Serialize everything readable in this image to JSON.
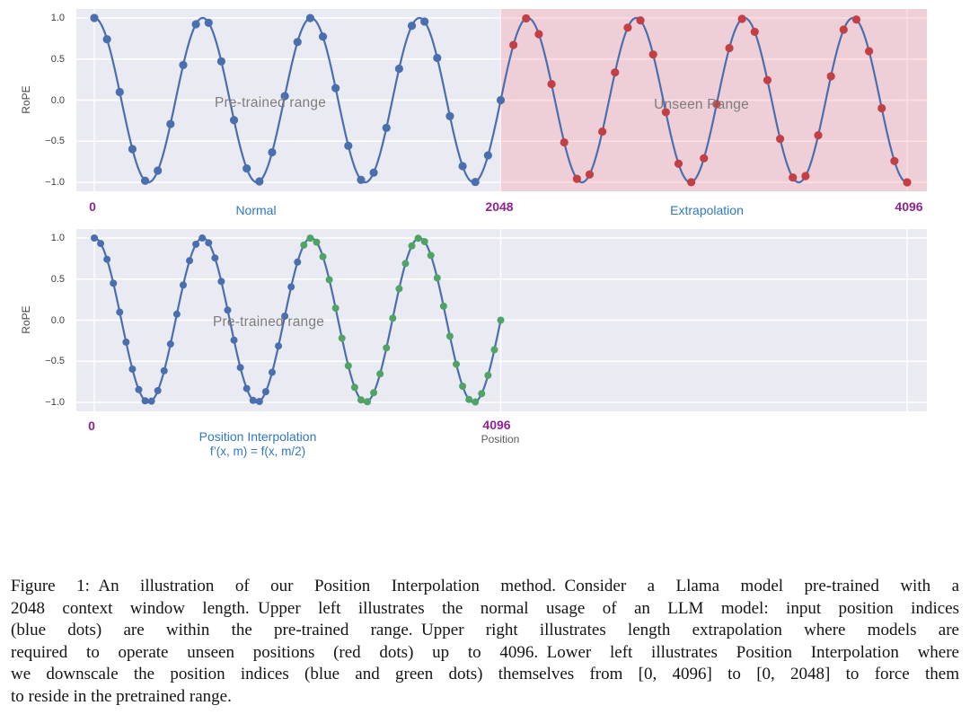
{
  "figure": {
    "caption_lines": [
      "Figure 1: An illustration of our Position Interpolation method. Consider a Llama model pre-trained with a",
      "2048 context window length. Upper left illustrates the normal usage of an LLM model: input position indices",
      "(blue dots) are within the pre-trained range. Upper right illustrates length extrapolation where models are",
      "required to operate unseen positions (red dots) up to 4096. Lower left illustrates Position Interpolation where",
      "we downscale the position indices (blue and green dots) themselves from [0, 4096] to [0, 2048] to force them",
      "to reside in the pretrained range."
    ]
  },
  "colors": {
    "plot_background": "#eaeaf2",
    "gridline": "#ffffff",
    "line_blue": "#4a6fae",
    "dot_blue": "#4a6fae",
    "dot_red": "#c24045",
    "dot_green": "#4fa465",
    "unseen_region_fill": "rgba(255,135,145,0.27)",
    "tick_purple": "#8e2490",
    "label_blue": "#3178be",
    "annotation_gray": "#7d7d7d"
  },
  "chart_data": [
    {
      "id": "rope-normal-vs-extrapolation",
      "type": "line",
      "ylabel": "RoPE",
      "ylim": [
        -1.11,
        1.11
      ],
      "yticks": [
        {
          "value": 1.0,
          "label": "1.0"
        },
        {
          "value": 0.5,
          "label": "0.5"
        },
        {
          "value": 0.0,
          "label": "0.0"
        },
        {
          "value": -0.5,
          "label": "−0.5"
        },
        {
          "value": -1.0,
          "label": "−1.0"
        }
      ],
      "x_axis_range": [
        0,
        4096
      ],
      "x_data_max": 4096,
      "wave_cycles": 7.5,
      "dot_step": 64,
      "color_boundary": 2048,
      "dot_color_in": "#4a6fae",
      "dot_color_out": "#c24045",
      "dot_radius": 4.6,
      "line_color": "#4a6fae",
      "shaded_region": {
        "start": 2048,
        "label": "Unseen Range"
      },
      "xticks": [
        {
          "value": 0,
          "label": "0"
        },
        {
          "value": 2048,
          "label": "2048"
        },
        {
          "value": 4096,
          "label": "4096"
        }
      ],
      "normal_label": "Normal",
      "extrapolation_label": "Extrapolation",
      "annotations": [
        {
          "text": "Pre-trained range"
        },
        {
          "text": "Unseen Range"
        }
      ]
    },
    {
      "id": "rope-position-interpolation",
      "type": "line",
      "ylabel": "RoPE",
      "ylim": [
        -1.11,
        1.11
      ],
      "yticks": [
        {
          "value": 1.0,
          "label": "1.0"
        },
        {
          "value": 0.5,
          "label": "0.5"
        },
        {
          "value": 0.0,
          "label": "0.0"
        },
        {
          "value": -0.5,
          "label": "−0.5"
        },
        {
          "value": -1.0,
          "label": "−1.0"
        }
      ],
      "x_axis_range": [
        0,
        8192
      ],
      "x_data_max": 4096,
      "wave_cycles": 3.75,
      "dot_step": 64,
      "color_boundary": 2048,
      "dot_color_in": "#4a6fae",
      "dot_color_out": "#4fa465",
      "dot_radius": 4.0,
      "line_color": "#4a6fae",
      "shaded_region": null,
      "xticks": [
        {
          "value": 0,
          "label": "0"
        },
        {
          "value": 4096,
          "label": "4096"
        },
        {
          "value": 8192,
          "label": ""
        }
      ],
      "method_label": "Position Interpolation",
      "formula": "f’(x, m) = f(x, m/2)",
      "x_axis_title": "Position",
      "annotations": [
        {
          "text": "Pre-trained range"
        }
      ]
    }
  ]
}
